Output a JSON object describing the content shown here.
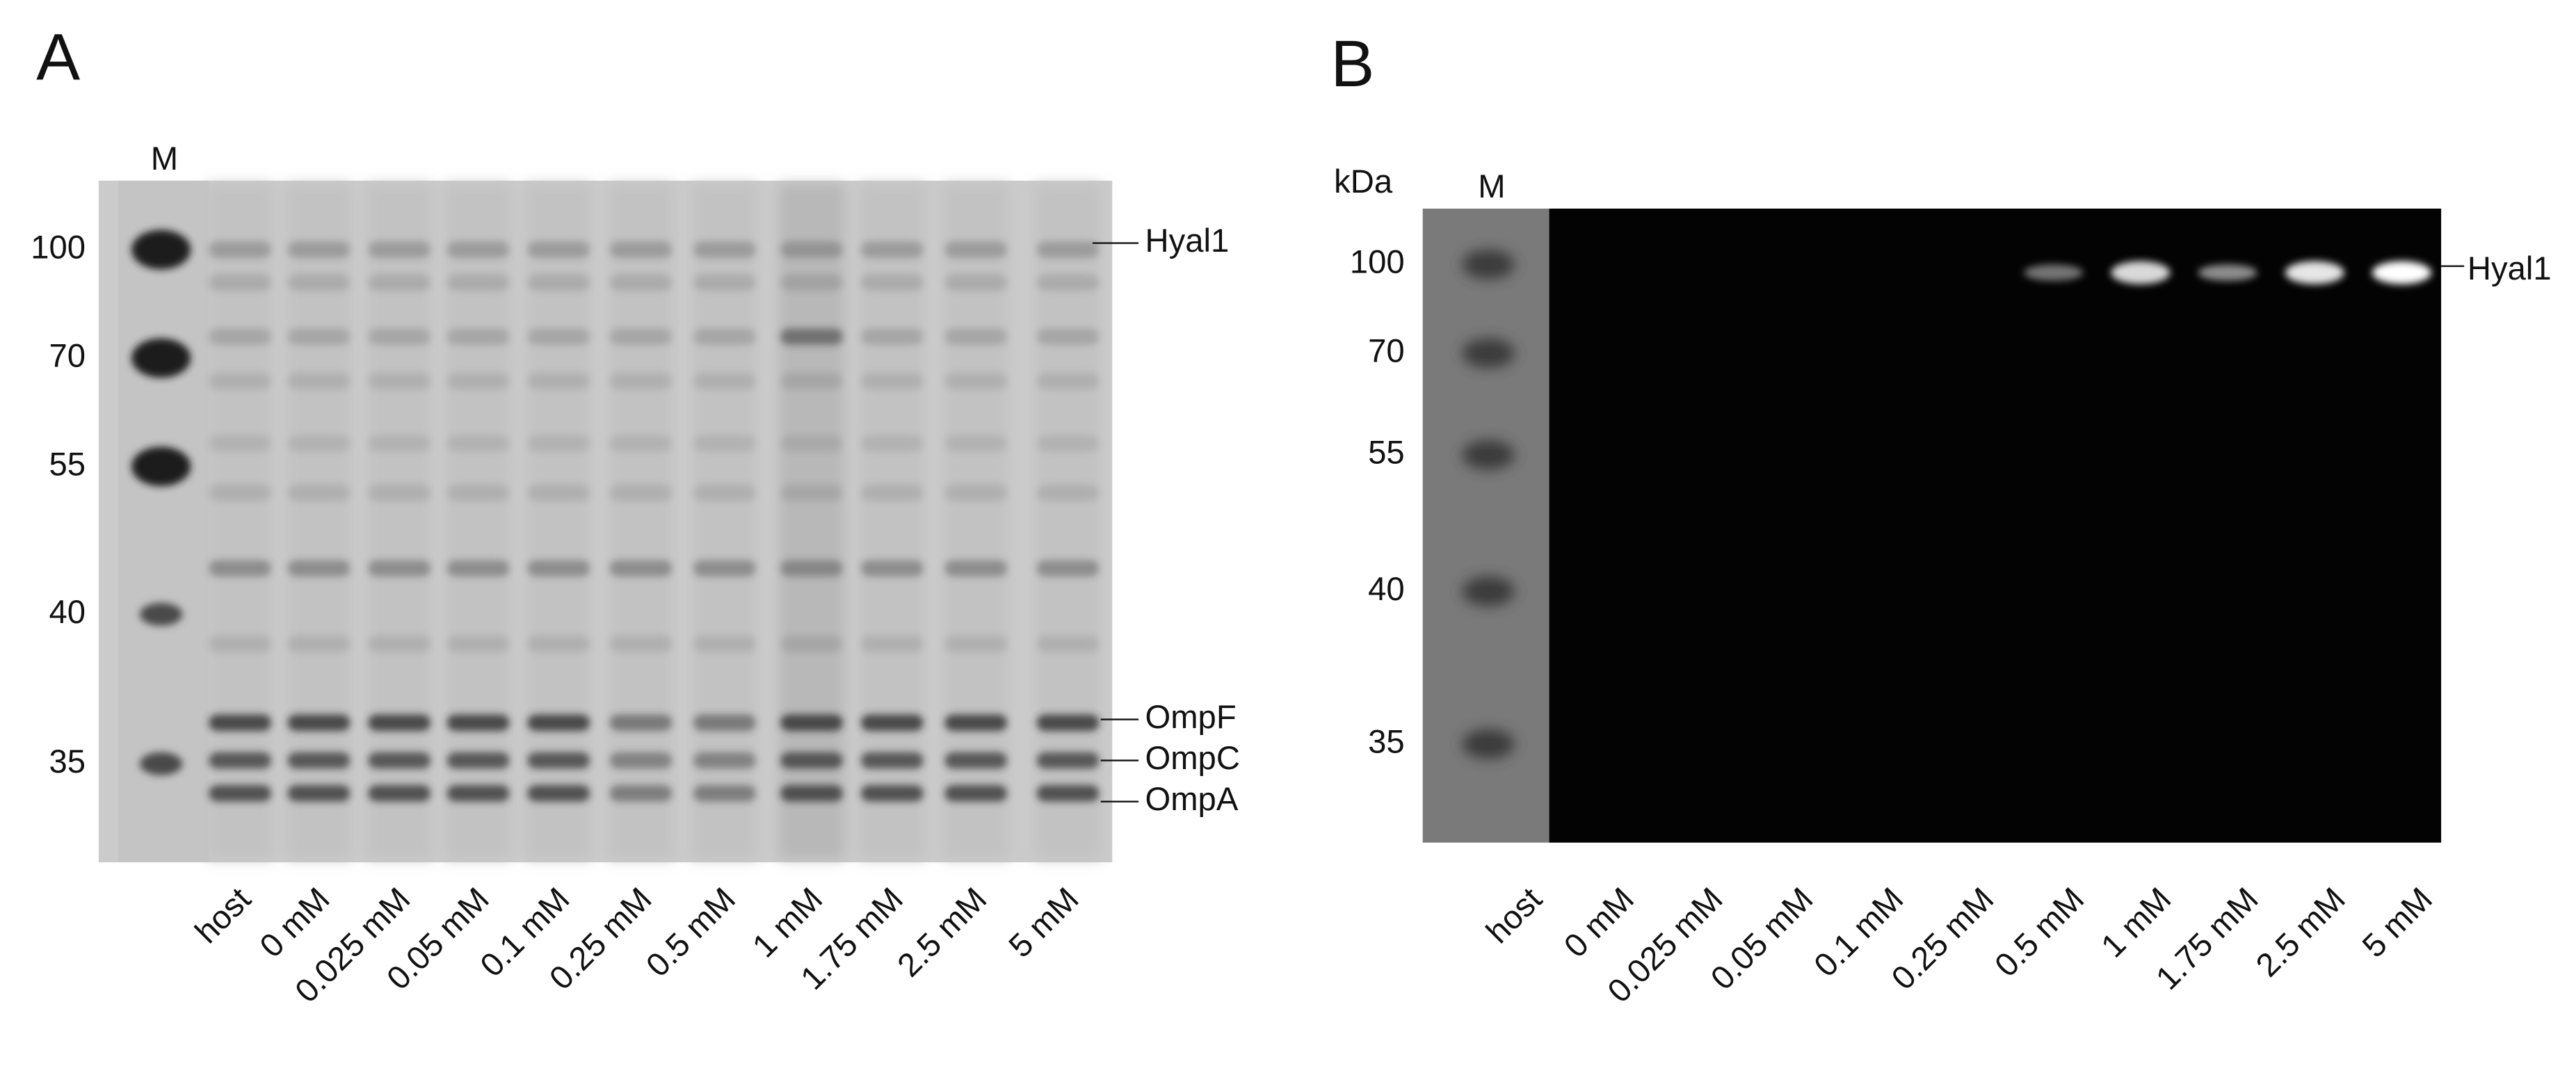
{
  "panels": [
    {
      "label": "A",
      "marker_lane": "M",
      "marker_sizes": [
        "100",
        "70",
        "55",
        "40",
        "35"
      ],
      "lanes": [
        "host",
        "0 mM",
        "0.025 mM",
        "0.05 mM",
        "0.1 mM",
        "0.25 mM",
        "0.5 mM",
        "1 mM",
        "1.75 mM",
        "2.5 mM",
        "5 mM"
      ],
      "band_labels": [
        "Hyal1",
        "OmpF",
        "OmpC",
        "OmpA"
      ]
    },
    {
      "label": "B",
      "unit": "kDa",
      "marker_lane": "M",
      "marker_sizes": [
        "100",
        "70",
        "55",
        "40",
        "35"
      ],
      "lanes": [
        "host",
        "0 mM",
        "0.025 mM",
        "0.05 mM",
        "0.1 mM",
        "0.25 mM",
        "0.5 mM",
        "1 mM",
        "1.75 mM",
        "2.5 mM",
        "5 mM"
      ],
      "band_labels": [
        "Hyal1"
      ]
    }
  ]
}
